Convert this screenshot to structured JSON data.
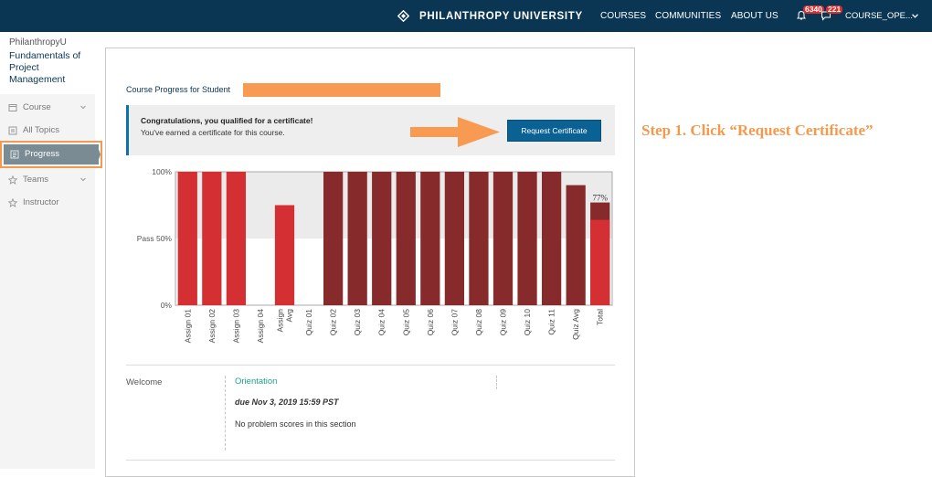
{
  "header": {
    "brand": "PHILANTHROPY UNIVERSITY",
    "nav": [
      "COURSES",
      "COMMUNITIES",
      "ABOUT US"
    ],
    "notifications_count": "6340",
    "messages_count": "221",
    "user": "COURSE_OPE...",
    "icons": [
      "brand-diamond-icon",
      "bell-icon",
      "chat-icon",
      "chevron-down-icon"
    ],
    "colors": {
      "bar_bg": "#0a3653",
      "badge": "#d9312f"
    }
  },
  "sidebar": {
    "org": "PhilanthropyU",
    "course_title": "Fundamentals of Project Management",
    "items": [
      {
        "label": "Course",
        "icon": "course-icon",
        "has_chevron": true
      },
      {
        "label": "All Topics",
        "icon": "topics-icon",
        "has_chevron": false
      },
      {
        "label": "Progress",
        "icon": "progress-icon",
        "active": true
      },
      {
        "label": "Teams",
        "icon": "star-icon",
        "has_chevron": true
      },
      {
        "label": "Instructor",
        "icon": "star-icon",
        "has_chevron": false
      }
    ]
  },
  "progress": {
    "title": "Course Progress for Student",
    "cert_title": "Congratulations, you qualified for a certificate!",
    "cert_sub": "You've earned a certificate for this course.",
    "cert_button": "Request Certificate"
  },
  "annotation": {
    "step_note": "Step 1. Click “Request Certificate”",
    "color": "#f39a4f"
  },
  "chart_data": {
    "type": "bar",
    "categories": [
      "Assign 01",
      "Assign 02",
      "Assign 03",
      "Assign 04",
      "Assign Avg",
      "Quiz 01",
      "Quiz 02",
      "Quiz 03",
      "Quiz 04",
      "Quiz 05",
      "Quiz 06",
      "Quiz 07",
      "Quiz 08",
      "Quiz 09",
      "Quiz 10",
      "Quiz 11",
      "Quiz Avg",
      "Total"
    ],
    "values": [
      100,
      100,
      100,
      0,
      75,
      0,
      100,
      100,
      100,
      100,
      100,
      100,
      100,
      100,
      100,
      100,
      90,
      77
    ],
    "total_assignment_share": 64,
    "y_ticks": [
      "0%",
      "Pass 50%",
      "100%"
    ],
    "ylim": [
      0,
      100
    ],
    "pass_line": 50,
    "total_label": "77%",
    "colors": {
      "assignment": "#d43033",
      "quiz": "#862a2b",
      "pass_zone": "#ebebeb"
    }
  },
  "sections": [
    {
      "name": "Welcome",
      "subsection": "Orientation",
      "due": "due Nov 3, 2019 15:59 PST",
      "scores": "No problem scores in this section"
    }
  ]
}
